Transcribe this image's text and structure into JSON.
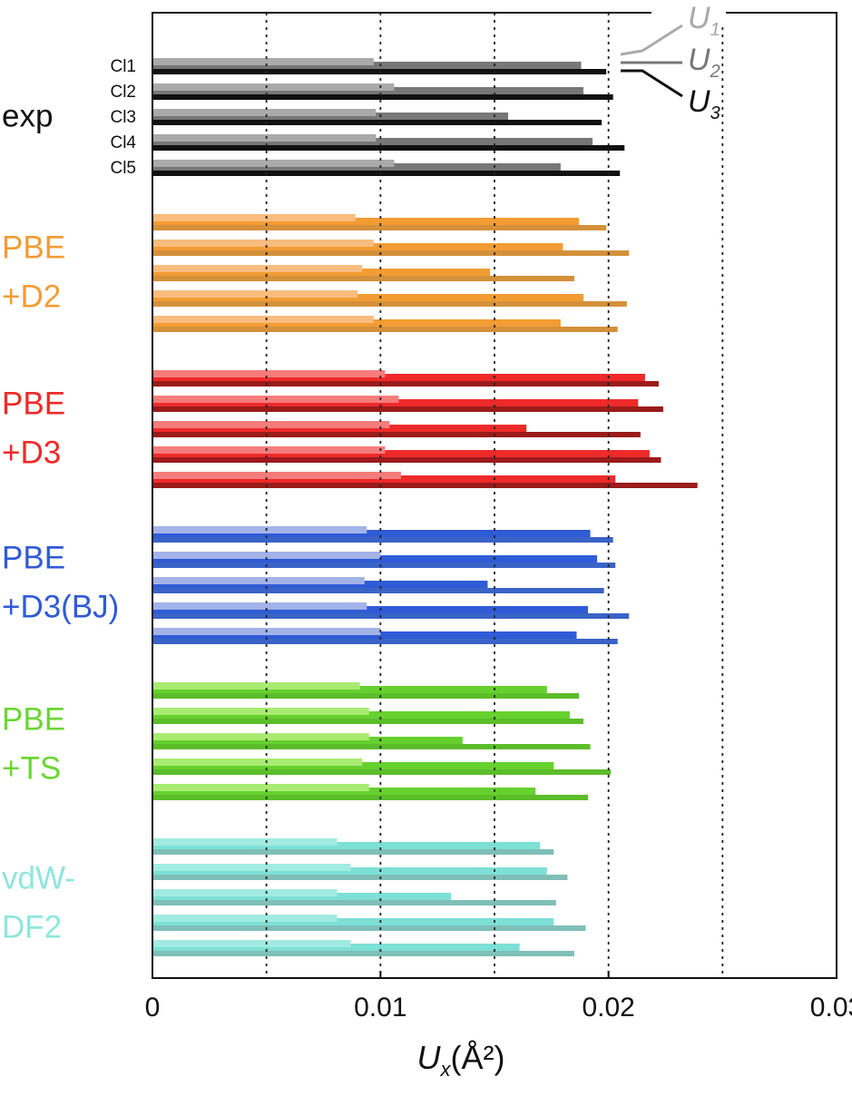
{
  "chart_data": {
    "type": "bar",
    "orientation": "horizontal",
    "xlabel": {
      "main": "U",
      "sub": "x",
      "rest": "(Å²)"
    },
    "xlim": [
      0,
      0.03
    ],
    "xticks": [
      0,
      0.01,
      0.02,
      0.03
    ],
    "grid_x": [
      0.005,
      0.01,
      0.015,
      0.02,
      0.025
    ],
    "categories": [
      "Cl1",
      "Cl2",
      "Cl3",
      "Cl4",
      "Cl5"
    ],
    "legend": [
      {
        "label": "U",
        "sub": "1"
      },
      {
        "label": "U",
        "sub": "2"
      },
      {
        "label": "U",
        "sub": "3"
      }
    ],
    "groups": [
      {
        "name": [
          "exp"
        ],
        "label_color": "#111111",
        "colors": [
          "#aaaaaa",
          "#777777",
          "#111111"
        ],
        "values": [
          [
            0.0097,
            0.0106,
            0.0098,
            0.0098,
            0.0106
          ],
          [
            0.0188,
            0.0189,
            0.0156,
            0.0193,
            0.0179
          ],
          [
            0.0199,
            0.0202,
            0.0197,
            0.0207,
            0.0205
          ]
        ]
      },
      {
        "name": [
          "PBE",
          "+D2"
        ],
        "label_color": "#f39c34",
        "colors": [
          "#f8bd7e",
          "#f39c34",
          "#d4913a"
        ],
        "values": [
          [
            0.0089,
            0.0097,
            0.0092,
            0.009,
            0.0097
          ],
          [
            0.0187,
            0.018,
            0.0148,
            0.0189,
            0.0179
          ],
          [
            0.0199,
            0.0209,
            0.0185,
            0.0208,
            0.0204
          ]
        ]
      },
      {
        "name": [
          "PBE",
          "+D3"
        ],
        "label_color": "#ee2a2a",
        "colors": [
          "#f57c7c",
          "#ee2a2a",
          "#9b1b1b"
        ],
        "values": [
          [
            0.0102,
            0.0108,
            0.0104,
            0.0102,
            0.0109
          ],
          [
            0.0216,
            0.0213,
            0.0164,
            0.0218,
            0.0203
          ],
          [
            0.0222,
            0.0224,
            0.0214,
            0.0223,
            0.0239
          ]
        ]
      },
      {
        "name": [
          "PBE",
          "+D3(BJ)"
        ],
        "label_color": "#2f5bd6",
        "colors": [
          "#a3b3e8",
          "#2f5bd6",
          "#3a63c8"
        ],
        "values": [
          [
            0.0094,
            0.01,
            0.0093,
            0.0094,
            0.01
          ],
          [
            0.0192,
            0.0195,
            0.0147,
            0.0191,
            0.0186
          ],
          [
            0.0202,
            0.0203,
            0.0198,
            0.0209,
            0.0204
          ]
        ]
      },
      {
        "name": [
          "PBE",
          "+TS"
        ],
        "label_color": "#6bd635",
        "colors": [
          "#a9eb72",
          "#66d12e",
          "#5cbd2a"
        ],
        "values": [
          [
            0.0091,
            0.0095,
            0.0095,
            0.0092,
            0.0095
          ],
          [
            0.0173,
            0.0183,
            0.0136,
            0.0176,
            0.0168
          ],
          [
            0.0187,
            0.0189,
            0.0192,
            0.0201,
            0.0191
          ]
        ]
      },
      {
        "name": [
          "vdW-",
          "DF2"
        ],
        "label_color": "#8ee6dc",
        "colors": [
          "#a2ebe2",
          "#7de0d5",
          "#7fbfb8"
        ],
        "values": [
          [
            0.0081,
            0.0087,
            0.0081,
            0.0081,
            0.0087
          ],
          [
            0.017,
            0.0173,
            0.0131,
            0.0176,
            0.0161
          ],
          [
            0.0176,
            0.0182,
            0.0177,
            0.019,
            0.0185
          ]
        ]
      }
    ]
  }
}
